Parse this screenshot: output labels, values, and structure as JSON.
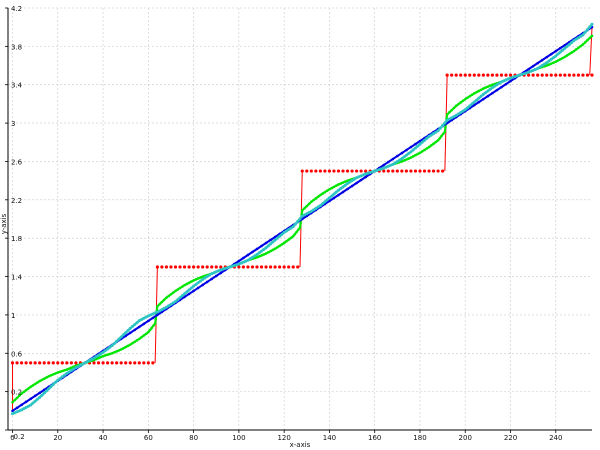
{
  "chart_data": {
    "type": "line",
    "title": "",
    "xlabel": "x-axis",
    "ylabel": "y-axis",
    "xlim": [
      -2,
      256
    ],
    "ylim": [
      -0.2,
      4.2
    ],
    "grid": true,
    "legend": "none",
    "x_ticks": [
      0,
      20,
      40,
      60,
      80,
      100,
      120,
      140,
      160,
      180,
      200,
      220,
      240
    ],
    "x_tick_labels": [
      "0",
      "20",
      "40",
      "60",
      "80",
      "100",
      "120",
      "140",
      "160",
      "180",
      "200",
      "220",
      "240"
    ],
    "y_ticks": [
      -0.2,
      0.2,
      0.6,
      1,
      1.4,
      1.8,
      2.2,
      2.6,
      3,
      3.4,
      3.8,
      4.2
    ],
    "y_tick_labels": [
      "-0.2",
      "0.2",
      "0.6",
      "1",
      "1.4",
      "1.8",
      "2.2",
      "2.6",
      "3",
      "3.4",
      "3.8",
      "4.2"
    ],
    "series": [
      {
        "color": "#ff0000",
        "marker_size": 1.6,
        "x": [
          0,
          63.9,
          64,
          127.9,
          128,
          191.9,
          192,
          255.9,
          256
        ],
        "values": [
          0,
          0,
          1,
          1,
          2,
          2,
          3,
          3,
          4
        ],
        "points": [
          [
            0,
            0.5
          ],
          [
            2,
            0.5
          ],
          [
            4,
            0.5
          ],
          [
            6,
            0.5
          ],
          [
            8,
            0.5
          ],
          [
            10,
            0.5
          ],
          [
            12,
            0.5
          ],
          [
            14,
            0.5
          ],
          [
            16,
            0.5
          ],
          [
            18,
            0.5
          ],
          [
            20,
            0.5
          ],
          [
            22,
            0.5
          ],
          [
            24,
            0.5
          ],
          [
            26,
            0.5
          ],
          [
            28,
            0.5
          ],
          [
            30,
            0.5
          ],
          [
            32,
            0.5
          ],
          [
            34,
            0.5
          ],
          [
            36,
            0.5
          ],
          [
            38,
            0.5
          ],
          [
            40,
            0.5
          ],
          [
            42,
            0.5
          ],
          [
            44,
            0.5
          ],
          [
            46,
            0.5
          ],
          [
            48,
            0.5
          ],
          [
            50,
            0.5
          ],
          [
            52,
            0.5
          ],
          [
            54,
            0.5
          ],
          [
            56,
            0.5
          ],
          [
            58,
            0.5
          ],
          [
            60,
            0.5
          ],
          [
            62,
            0.5
          ],
          [
            64,
            1.5
          ],
          [
            66,
            1.5
          ],
          [
            68,
            1.5
          ],
          [
            70,
            1.5
          ],
          [
            72,
            1.5
          ],
          [
            74,
            1.5
          ],
          [
            76,
            1.5
          ],
          [
            78,
            1.5
          ],
          [
            80,
            1.5
          ],
          [
            82,
            1.5
          ],
          [
            84,
            1.5
          ],
          [
            86,
            1.5
          ],
          [
            88,
            1.5
          ],
          [
            90,
            1.5
          ],
          [
            92,
            1.5
          ],
          [
            94,
            1.5
          ],
          [
            96,
            1.5
          ],
          [
            98,
            1.5
          ],
          [
            100,
            1.5
          ],
          [
            102,
            1.5
          ],
          [
            104,
            1.5
          ],
          [
            106,
            1.5
          ],
          [
            108,
            1.5
          ],
          [
            110,
            1.5
          ],
          [
            112,
            1.5
          ],
          [
            114,
            1.5
          ],
          [
            116,
            1.5
          ],
          [
            118,
            1.5
          ],
          [
            120,
            1.5
          ],
          [
            122,
            1.5
          ],
          [
            124,
            1.5
          ],
          [
            126,
            1.5
          ],
          [
            128,
            2.5
          ],
          [
            130,
            2.5
          ],
          [
            132,
            2.5
          ],
          [
            134,
            2.5
          ],
          [
            136,
            2.5
          ],
          [
            138,
            2.5
          ],
          [
            140,
            2.5
          ],
          [
            142,
            2.5
          ],
          [
            144,
            2.5
          ],
          [
            146,
            2.5
          ],
          [
            148,
            2.5
          ],
          [
            150,
            2.5
          ],
          [
            152,
            2.5
          ],
          [
            154,
            2.5
          ],
          [
            156,
            2.5
          ],
          [
            158,
            2.5
          ],
          [
            160,
            2.5
          ],
          [
            162,
            2.5
          ],
          [
            164,
            2.5
          ],
          [
            166,
            2.5
          ],
          [
            168,
            2.5
          ],
          [
            170,
            2.5
          ],
          [
            172,
            2.5
          ],
          [
            174,
            2.5
          ],
          [
            176,
            2.5
          ],
          [
            178,
            2.5
          ],
          [
            180,
            2.5
          ],
          [
            182,
            2.5
          ],
          [
            184,
            2.5
          ],
          [
            186,
            2.5
          ],
          [
            188,
            2.5
          ],
          [
            190,
            2.5
          ],
          [
            192,
            3.5
          ],
          [
            194,
            3.5
          ],
          [
            196,
            3.5
          ],
          [
            198,
            3.5
          ],
          [
            200,
            3.5
          ],
          [
            202,
            3.5
          ],
          [
            204,
            3.5
          ],
          [
            206,
            3.5
          ],
          [
            208,
            3.5
          ],
          [
            210,
            3.5
          ],
          [
            212,
            3.5
          ],
          [
            214,
            3.5
          ],
          [
            216,
            3.5
          ],
          [
            218,
            3.5
          ],
          [
            220,
            3.5
          ],
          [
            222,
            3.5
          ],
          [
            224,
            3.5
          ],
          [
            226,
            3.5
          ],
          [
            228,
            3.5
          ],
          [
            230,
            3.5
          ],
          [
            232,
            3.5
          ],
          [
            234,
            3.5
          ],
          [
            236,
            3.5
          ],
          [
            238,
            3.5
          ],
          [
            240,
            3.5
          ],
          [
            242,
            3.5
          ],
          [
            244,
            3.5
          ],
          [
            246,
            3.5
          ],
          [
            248,
            3.5
          ],
          [
            250,
            3.5
          ],
          [
            252,
            3.5
          ],
          [
            254,
            3.5
          ],
          [
            256,
            3.5
          ]
        ],
        "step_lines": [
          [
            [
              0,
              0
            ],
            [
              0,
              0.5
            ]
          ],
          [
            [
              63,
              0.5
            ],
            [
              64,
              1.5
            ]
          ],
          [
            [
              127,
              1.5
            ],
            [
              128,
              2.5
            ]
          ],
          [
            [
              191,
              2.5
            ],
            [
              192,
              3.5
            ]
          ],
          [
            [
              255,
              3.5
            ],
            [
              256,
              4
            ]
          ]
        ]
      },
      {
        "color": "#00e600",
        "marker_size": 1.3,
        "points": [
          [
            0,
            0.09
          ],
          [
            4,
            0.18
          ],
          [
            8,
            0.25
          ],
          [
            12,
            0.31
          ],
          [
            16,
            0.36
          ],
          [
            20,
            0.4
          ],
          [
            24,
            0.43
          ],
          [
            28,
            0.47
          ],
          [
            32,
            0.5
          ],
          [
            36,
            0.53
          ],
          [
            40,
            0.57
          ],
          [
            44,
            0.6
          ],
          [
            48,
            0.64
          ],
          [
            52,
            0.69
          ],
          [
            56,
            0.75
          ],
          [
            60,
            0.82
          ],
          [
            63,
            0.91
          ],
          [
            64,
            1.09
          ],
          [
            68,
            1.18
          ],
          [
            72,
            1.25
          ],
          [
            76,
            1.31
          ],
          [
            80,
            1.36
          ],
          [
            84,
            1.4
          ],
          [
            88,
            1.43
          ],
          [
            92,
            1.47
          ],
          [
            96,
            1.5
          ],
          [
            100,
            1.53
          ],
          [
            104,
            1.57
          ],
          [
            108,
            1.6
          ],
          [
            112,
            1.64
          ],
          [
            116,
            1.69
          ],
          [
            120,
            1.75
          ],
          [
            124,
            1.82
          ],
          [
            127,
            1.91
          ],
          [
            128,
            2.09
          ],
          [
            132,
            2.18
          ],
          [
            136,
            2.25
          ],
          [
            140,
            2.31
          ],
          [
            144,
            2.36
          ],
          [
            148,
            2.4
          ],
          [
            152,
            2.43
          ],
          [
            156,
            2.47
          ],
          [
            160,
            2.5
          ],
          [
            164,
            2.53
          ],
          [
            168,
            2.57
          ],
          [
            172,
            2.6
          ],
          [
            176,
            2.64
          ],
          [
            180,
            2.69
          ],
          [
            184,
            2.75
          ],
          [
            188,
            2.82
          ],
          [
            191,
            2.91
          ],
          [
            192,
            3.09
          ],
          [
            196,
            3.18
          ],
          [
            200,
            3.25
          ],
          [
            204,
            3.31
          ],
          [
            208,
            3.36
          ],
          [
            212,
            3.4
          ],
          [
            216,
            3.43
          ],
          [
            220,
            3.47
          ],
          [
            224,
            3.5
          ],
          [
            228,
            3.53
          ],
          [
            232,
            3.57
          ],
          [
            236,
            3.6
          ],
          [
            240,
            3.64
          ],
          [
            244,
            3.69
          ],
          [
            248,
            3.75
          ],
          [
            252,
            3.82
          ],
          [
            256,
            3.91
          ]
        ]
      },
      {
        "color": "#0000e6",
        "marker_size": 1.3,
        "points": [
          [
            0,
            0
          ],
          [
            8,
            0.125
          ],
          [
            16,
            0.25
          ],
          [
            24,
            0.375
          ],
          [
            32,
            0.5
          ],
          [
            40,
            0.625
          ],
          [
            48,
            0.75
          ],
          [
            56,
            0.875
          ],
          [
            64,
            1
          ],
          [
            72,
            1.125
          ],
          [
            80,
            1.25
          ],
          [
            88,
            1.375
          ],
          [
            96,
            1.5
          ],
          [
            104,
            1.625
          ],
          [
            112,
            1.75
          ],
          [
            120,
            1.875
          ],
          [
            128,
            2
          ],
          [
            136,
            2.125
          ],
          [
            144,
            2.25
          ],
          [
            152,
            2.375
          ],
          [
            160,
            2.5
          ],
          [
            168,
            2.625
          ],
          [
            176,
            2.75
          ],
          [
            184,
            2.875
          ],
          [
            192,
            3
          ],
          [
            200,
            3.125
          ],
          [
            208,
            3.25
          ],
          [
            216,
            3.375
          ],
          [
            224,
            3.5
          ],
          [
            232,
            3.625
          ],
          [
            240,
            3.75
          ],
          [
            248,
            3.875
          ],
          [
            256,
            4
          ]
        ]
      },
      {
        "color": "#2ec4c4",
        "marker_size": 1.5,
        "points": [
          [
            0,
            -0.03
          ],
          [
            4,
            0.01
          ],
          [
            8,
            0.06
          ],
          [
            12,
            0.14
          ],
          [
            16,
            0.23
          ],
          [
            20,
            0.32
          ],
          [
            24,
            0.39
          ],
          [
            28,
            0.45
          ],
          [
            32,
            0.5
          ],
          [
            36,
            0.55
          ],
          [
            40,
            0.61
          ],
          [
            44,
            0.68
          ],
          [
            48,
            0.77
          ],
          [
            52,
            0.86
          ],
          [
            56,
            0.94
          ],
          [
            60,
            0.99
          ],
          [
            64,
            1.03
          ],
          [
            68,
            1.08
          ],
          [
            72,
            1.14
          ],
          [
            76,
            1.22
          ],
          [
            80,
            1.3
          ],
          [
            84,
            1.37
          ],
          [
            88,
            1.43
          ],
          [
            92,
            1.47
          ],
          [
            96,
            1.5
          ],
          [
            100,
            1.53
          ],
          [
            104,
            1.57
          ],
          [
            108,
            1.63
          ],
          [
            112,
            1.7
          ],
          [
            116,
            1.78
          ],
          [
            120,
            1.86
          ],
          [
            124,
            1.92
          ],
          [
            128,
            2.03
          ],
          [
            132,
            2.08
          ],
          [
            136,
            2.14
          ],
          [
            140,
            2.22
          ],
          [
            144,
            2.3
          ],
          [
            148,
            2.37
          ],
          [
            152,
            2.43
          ],
          [
            156,
            2.47
          ],
          [
            160,
            2.5
          ],
          [
            164,
            2.53
          ],
          [
            168,
            2.57
          ],
          [
            172,
            2.63
          ],
          [
            176,
            2.7
          ],
          [
            180,
            2.78
          ],
          [
            184,
            2.86
          ],
          [
            188,
            2.92
          ],
          [
            192,
            3.03
          ],
          [
            196,
            3.08
          ],
          [
            200,
            3.14
          ],
          [
            204,
            3.22
          ],
          [
            208,
            3.3
          ],
          [
            212,
            3.37
          ],
          [
            216,
            3.43
          ],
          [
            220,
            3.47
          ],
          [
            224,
            3.5
          ],
          [
            228,
            3.53
          ],
          [
            232,
            3.57
          ],
          [
            236,
            3.63
          ],
          [
            240,
            3.7
          ],
          [
            244,
            3.78
          ],
          [
            248,
            3.86
          ],
          [
            252,
            3.92
          ],
          [
            256,
            4.03
          ]
        ]
      }
    ]
  }
}
